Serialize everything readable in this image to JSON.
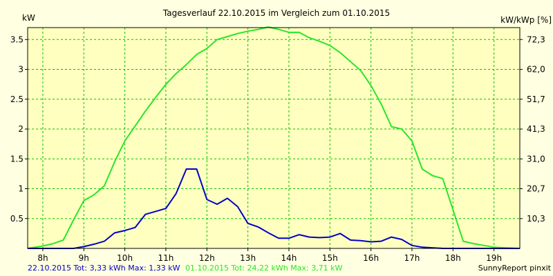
{
  "chart_data": {
    "type": "line",
    "title": "Tagesverlauf 22.10.2015 im Vergleich zum 01.10.2015",
    "left_unit": "kW",
    "right_unit": "kW/kWp [%]",
    "x_ticks": [
      "8h",
      "9h",
      "10h",
      "11h",
      "12h",
      "13h",
      "14h",
      "15h",
      "16h",
      "17h",
      "18h",
      "19h"
    ],
    "y_ticks": [
      "0.5",
      "1",
      "1.5",
      "2",
      "2.5",
      "3",
      "3.5"
    ],
    "y_ticks_right": [
      "10,3",
      "20,7",
      "31,0",
      "41,3",
      "51,7",
      "62,0",
      "72,3"
    ],
    "xlim": [
      7.63,
      19.63
    ],
    "ylim": [
      0,
      3.7
    ],
    "grid": true,
    "colors": {
      "background": "#ffffe1",
      "plot": "#ffffc0",
      "grid": "#00c000",
      "series1": "#0000c8",
      "series2": "#28e628"
    },
    "series": [
      {
        "name": "22.10.2015",
        "values": [
          [
            7.63,
            0
          ],
          [
            8.0,
            0
          ],
          [
            8.5,
            0
          ],
          [
            8.75,
            0
          ],
          [
            9.0,
            0.03
          ],
          [
            9.25,
            0.07
          ],
          [
            9.5,
            0.12
          ],
          [
            9.75,
            0.26
          ],
          [
            10.0,
            0.3
          ],
          [
            10.25,
            0.35
          ],
          [
            10.5,
            0.57
          ],
          [
            10.75,
            0.62
          ],
          [
            11.0,
            0.67
          ],
          [
            11.25,
            0.92
          ],
          [
            11.5,
            1.33
          ],
          [
            11.75,
            1.33
          ],
          [
            12.0,
            0.82
          ],
          [
            12.25,
            0.74
          ],
          [
            12.5,
            0.84
          ],
          [
            12.75,
            0.7
          ],
          [
            13.0,
            0.42
          ],
          [
            13.25,
            0.36
          ],
          [
            13.5,
            0.26
          ],
          [
            13.75,
            0.17
          ],
          [
            14.0,
            0.17
          ],
          [
            14.25,
            0.23
          ],
          [
            14.5,
            0.19
          ],
          [
            14.75,
            0.18
          ],
          [
            15.0,
            0.19
          ],
          [
            15.25,
            0.25
          ],
          [
            15.5,
            0.14
          ],
          [
            15.75,
            0.13
          ],
          [
            16.0,
            0.11
          ],
          [
            16.25,
            0.12
          ],
          [
            16.5,
            0.19
          ],
          [
            16.75,
            0.15
          ],
          [
            17.0,
            0.05
          ],
          [
            17.25,
            0.02
          ],
          [
            17.5,
            0.01
          ],
          [
            17.75,
            0
          ],
          [
            18.0,
            0
          ],
          [
            18.5,
            0
          ],
          [
            19.0,
            0
          ],
          [
            19.63,
            0
          ]
        ],
        "summary_label": "22.10.2015 Tot: 3,33 kWh Max: 1,33 kW",
        "color": "#0000c8"
      },
      {
        "name": "01.10.2015",
        "values": [
          [
            7.63,
            0
          ],
          [
            8.0,
            0.04
          ],
          [
            8.25,
            0.08
          ],
          [
            8.5,
            0.14
          ],
          [
            8.75,
            0.48
          ],
          [
            9.0,
            0.8
          ],
          [
            9.25,
            0.9
          ],
          [
            9.5,
            1.05
          ],
          [
            9.75,
            1.45
          ],
          [
            10.0,
            1.8
          ],
          [
            10.25,
            2.05
          ],
          [
            10.5,
            2.3
          ],
          [
            10.75,
            2.53
          ],
          [
            11.0,
            2.75
          ],
          [
            11.25,
            2.93
          ],
          [
            11.5,
            3.08
          ],
          [
            11.75,
            3.25
          ],
          [
            12.0,
            3.35
          ],
          [
            12.25,
            3.5
          ],
          [
            12.5,
            3.55
          ],
          [
            12.75,
            3.6
          ],
          [
            13.0,
            3.64
          ],
          [
            13.25,
            3.67
          ],
          [
            13.5,
            3.71
          ],
          [
            13.75,
            3.67
          ],
          [
            14.0,
            3.62
          ],
          [
            14.25,
            3.62
          ],
          [
            14.5,
            3.53
          ],
          [
            14.75,
            3.47
          ],
          [
            15.0,
            3.4
          ],
          [
            15.25,
            3.28
          ],
          [
            15.5,
            3.13
          ],
          [
            15.75,
            2.98
          ],
          [
            16.0,
            2.73
          ],
          [
            16.25,
            2.42
          ],
          [
            16.5,
            2.04
          ],
          [
            16.75,
            2.0
          ],
          [
            17.0,
            1.8
          ],
          [
            17.25,
            1.33
          ],
          [
            17.5,
            1.22
          ],
          [
            17.75,
            1.17
          ],
          [
            18.0,
            0.65
          ],
          [
            18.25,
            0.12
          ],
          [
            18.5,
            0.08
          ],
          [
            18.75,
            0.05
          ],
          [
            19.0,
            0.02
          ],
          [
            19.25,
            0.01
          ],
          [
            19.63,
            0
          ]
        ],
        "summary_label": "01.10.2015 Tot: 24,22 kWh Max: 3,71 kW",
        "color": "#28e628"
      }
    ],
    "credit": "SunnyReport pinxit"
  }
}
